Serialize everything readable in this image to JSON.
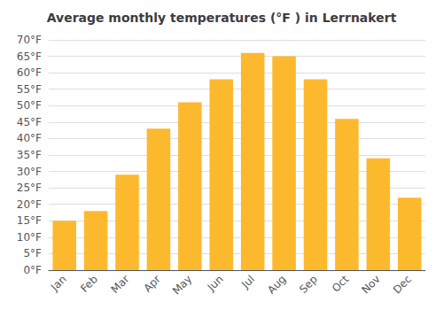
{
  "chart_data": {
    "type": "bar",
    "title": "Average monthly temperatures (°F ) in Lerrnakert",
    "categories": [
      "Jan",
      "Feb",
      "Mar",
      "Apr",
      "May",
      "Jun",
      "Jul",
      "Aug",
      "Sep",
      "Oct",
      "Nov",
      "Dec"
    ],
    "values": [
      15,
      18,
      29,
      43,
      51,
      58,
      66,
      65,
      58,
      46,
      34,
      22
    ],
    "color": "#FDB92E",
    "ylim": [
      0,
      70
    ],
    "yticks": [
      {
        "value": 0,
        "label": "0°F"
      },
      {
        "value": 5,
        "label": "5°F"
      },
      {
        "value": 10,
        "label": "10°F"
      },
      {
        "value": 15,
        "label": "15°F"
      },
      {
        "value": 20,
        "label": "20°F"
      },
      {
        "value": 25,
        "label": "25°F"
      },
      {
        "value": 30,
        "label": "30°F"
      },
      {
        "value": 35,
        "label": "35°F"
      },
      {
        "value": 40,
        "label": "40°F"
      },
      {
        "value": 45,
        "label": "45°F"
      },
      {
        "value": 50,
        "label": "50°F"
      },
      {
        "value": 55,
        "label": "55°F"
      },
      {
        "value": 60,
        "label": "60°F"
      },
      {
        "value": 65,
        "label": "65°F"
      },
      {
        "value": 70,
        "label": "70°F"
      }
    ],
    "grid": true
  }
}
